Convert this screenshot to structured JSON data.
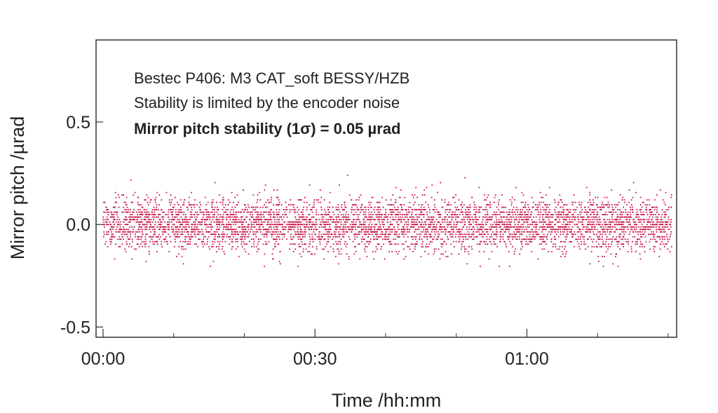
{
  "chart_data": {
    "type": "scatter",
    "title": "",
    "xlabel": "Time /hh:mm",
    "ylabel": "Mirror pitch /µrad",
    "xlim_minutes": [
      0,
      81
    ],
    "ylim": [
      -0.55,
      0.9
    ],
    "x_ticks": [
      {
        "label": "00:00",
        "minutes": 0
      },
      {
        "label": "00:30",
        "minutes": 30
      },
      {
        "label": "01:00",
        "minutes": 60
      }
    ],
    "y_ticks": [
      {
        "label": "0.5",
        "value": 0.5
      },
      {
        "label": "0.0",
        "value": 0.0
      },
      {
        "label": "-0.5",
        "value": -0.5
      }
    ],
    "annotations": [
      {
        "text": "Bestec P406: M3 CAT_soft BESSY/HZB",
        "bold": false
      },
      {
        "text": "Stability is limited by the encoder noise",
        "bold": false
      },
      {
        "text": "Mirror pitch stability (1σ) = 0.05 µrad",
        "bold": true
      }
    ],
    "grid": false,
    "legend": "none",
    "series": [
      {
        "color": "#c8174a",
        "x_range_minutes": [
          0,
          80.5
        ],
        "mean": 0.0,
        "std": 0.05,
        "typical_range": [
          -0.18,
          0.18
        ],
        "max_observed": 0.24,
        "min_observed": -0.21
      }
    ]
  }
}
